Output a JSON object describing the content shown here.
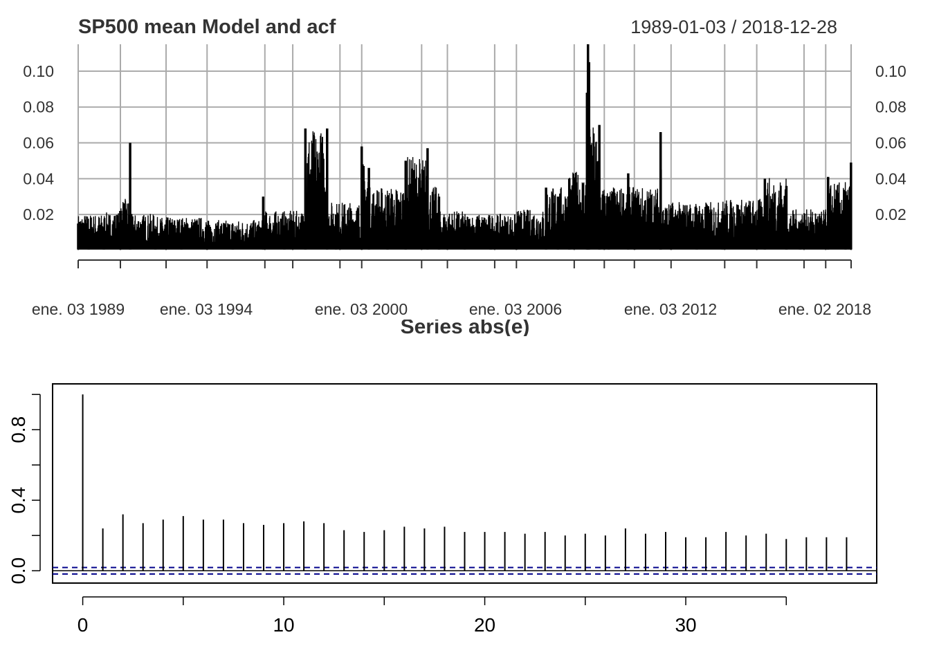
{
  "top_chart": {
    "title": "SP500 mean Model and acf",
    "date_range": "1989-01-03 / 2018-12-28",
    "y_ticks": [
      "0.02",
      "0.04",
      "0.06",
      "0.08",
      "0.10"
    ],
    "x_labels": [
      "ene. 03 1989",
      "ene. 03 1994",
      "ene. 03 2000",
      "ene. 03 2006",
      "ene. 03 2012",
      "ene. 02 2018"
    ],
    "overlapped_label": "Series  abs(e)",
    "colors": {
      "line": "#000000",
      "grid": "#aaaaaa"
    }
  },
  "bottom_chart": {
    "y_ticks": [
      "0.0",
      "0.4",
      "0.8"
    ],
    "x_ticks": [
      "0",
      "10",
      "20",
      "30"
    ],
    "colors": {
      "bars": "#000000",
      "conf_band": "#00008b"
    }
  },
  "chart_data": [
    {
      "type": "line",
      "title": "SP500 mean Model and acf",
      "date_range": [
        "1989-01-03",
        "2018-12-28"
      ],
      "ylim": [
        0,
        0.115
      ],
      "grid": true,
      "series": [
        {
          "x": [
            "1989-01-03",
            "1989-06-01",
            "1990-01-02",
            "1990-08-23",
            "1991-01-09",
            "1992-01-02",
            "1993-01-04",
            "1994-01-03",
            "1995-01-03",
            "1996-03-08",
            "1997-01-02",
            "1997-10-27",
            "1998-08-31",
            "1999-01-04",
            "2000-01-03",
            "2000-04-14",
            "2001-01-03",
            "2001-09-17",
            "2002-07-24",
            "2003-01-02",
            "2004-01-02",
            "2005-01-03",
            "2006-01-03",
            "2007-02-27",
            "2007-08-15",
            "2008-01-22",
            "2008-09-29",
            "2008-10-13",
            "2008-10-28",
            "2009-03-23",
            "2009-08-03",
            "2010-05-06",
            "2010-08-10",
            "2011-08-08",
            "2011-08-09",
            "2012-01-03",
            "2013-01-02",
            "2014-01-02",
            "2015-08-24",
            "2016-06-24",
            "2017-01-03",
            "2018-02-05",
            "2018-10-10",
            "2018-12-26"
          ],
          "y": [
            0.015,
            0.012,
            0.013,
            0.022,
            0.06,
            0.012,
            0.01,
            0.011,
            0.008,
            0.03,
            0.014,
            0.068,
            0.068,
            0.02,
            0.058,
            0.046,
            0.03,
            0.05,
            0.057,
            0.03,
            0.014,
            0.012,
            0.015,
            0.035,
            0.03,
            0.04,
            0.088,
            0.115,
            0.105,
            0.07,
            0.03,
            0.043,
            0.03,
            0.066,
            0.045,
            0.02,
            0.02,
            0.022,
            0.04,
            0.036,
            0.015,
            0.041,
            0.033,
            0.049
          ]
        }
      ]
    },
    {
      "type": "bar",
      "title": "",
      "xlabel": "",
      "ylabel": "",
      "x": [
        0,
        1,
        2,
        3,
        4,
        5,
        6,
        7,
        8,
        9,
        10,
        11,
        12,
        13,
        14,
        15,
        16,
        17,
        18,
        19,
        20,
        21,
        22,
        23,
        24,
        25,
        26,
        27,
        28,
        29,
        30,
        31,
        32,
        33,
        34,
        35,
        36,
        37,
        38
      ],
      "values": [
        1.0,
        0.24,
        0.32,
        0.27,
        0.29,
        0.31,
        0.29,
        0.29,
        0.27,
        0.26,
        0.27,
        0.28,
        0.27,
        0.23,
        0.22,
        0.23,
        0.25,
        0.24,
        0.25,
        0.22,
        0.22,
        0.22,
        0.21,
        0.22,
        0.2,
        0.21,
        0.2,
        0.24,
        0.21,
        0.22,
        0.19,
        0.19,
        0.22,
        0.2,
        0.21,
        0.18,
        0.19,
        0.19,
        0.19
      ],
      "conf_band": [
        -0.0185,
        0.0185
      ],
      "ylim": [
        -0.07,
        1.06
      ],
      "xlim": [
        -1.5,
        39.5
      ]
    }
  ]
}
